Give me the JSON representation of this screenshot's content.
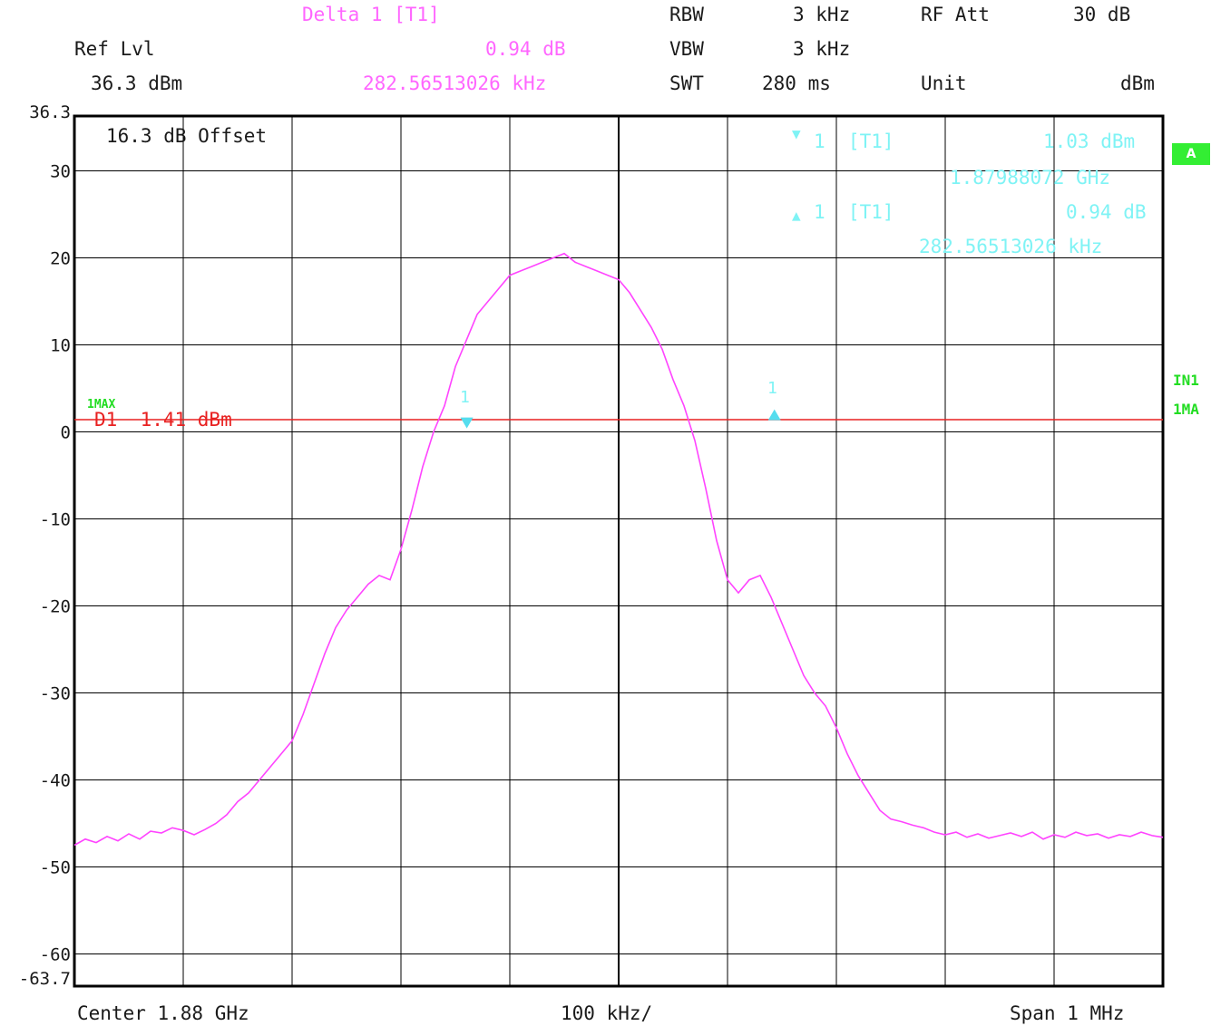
{
  "header": {
    "marker_title": "Delta 1 [T1]",
    "ref_lvl_label": "Ref Lvl",
    "ref_lvl_value": "36.3 dBm",
    "delta_value": "0.94 dB",
    "delta_freq": "282.56513026 kHz",
    "rbw_label": "RBW",
    "rbw_value": "3 kHz",
    "vbw_label": "VBW",
    "vbw_value": "3 kHz",
    "swt_label": "SWT",
    "swt_value": "280 ms",
    "rfatt_label": "RF Att",
    "rfatt_value": "30 dB",
    "unit_label": "Unit",
    "unit_value": "dBm"
  },
  "plot": {
    "offset_text": "16.3 dB Offset",
    "display_line": "D1  1.41 dBm",
    "line_badge": "1MAX",
    "marker1_block": {
      "symbol": "▼",
      "label": "1  [T1]",
      "level": "1.03 dBm",
      "freq": "1.87988072 GHz"
    },
    "delta1_block": {
      "symbol": "▲",
      "label": "1  [T1]",
      "level": "0.94 dB",
      "freq": "282.56513026 kHz"
    },
    "marker_num": "1"
  },
  "side": {
    "trace_badge": "A",
    "in1": "IN1",
    "ma": "1MA"
  },
  "footer": {
    "center": "Center 1.88 GHz",
    "div": "100 kHz/",
    "span": "Span 1 MHz"
  },
  "colors": {
    "trace": "#ff44ff",
    "display_line": "#e82020",
    "marker": "#55ddee",
    "grid": "#000000",
    "badge": "#33ee33"
  },
  "chart_data": {
    "type": "line",
    "xlabel": "",
    "ylabel": "",
    "x_unit": "kHz offset from center",
    "x_range": [
      -500,
      500
    ],
    "ylim": [
      -63.7,
      36.3
    ],
    "y_ticks": [
      30,
      20,
      10,
      0,
      -10,
      -20,
      -30,
      -40,
      -50,
      -60
    ],
    "y_tick_labels": [
      "36.3",
      "30",
      "20",
      "10",
      "0",
      "-10",
      "-20",
      "-30",
      "-40",
      "-50",
      "-60",
      "-63.7"
    ],
    "grid": true,
    "display_line": 1.41,
    "markers": [
      {
        "name": "1",
        "x": -139.5,
        "y": 1.03,
        "symbol": "down"
      },
      {
        "name": "delta 1",
        "x": 143.1,
        "y": 1.97,
        "symbol": "up"
      }
    ],
    "series": [
      {
        "x": [
          -500,
          -490,
          -480,
          -470,
          -460,
          -450,
          -440,
          -430,
          -420,
          -410,
          -400,
          -390,
          -380,
          -370,
          -360,
          -350,
          -340,
          -330,
          -320,
          -310,
          -300,
          -290,
          -280,
          -270,
          -260,
          -250,
          -240,
          -230,
          -220,
          -210,
          -200,
          -190,
          -180,
          -170,
          -160,
          -150,
          -140,
          -130,
          -120,
          -110,
          -100,
          -90,
          -80,
          -70,
          -60,
          -50,
          -40,
          -30,
          -20,
          -10,
          0,
          10,
          20,
          30,
          40,
          50,
          60,
          70,
          80,
          90,
          100,
          110,
          120,
          130,
          140,
          150,
          160,
          170,
          180,
          190,
          200,
          210,
          220,
          230,
          240,
          250,
          260,
          270,
          280,
          290,
          300,
          310,
          320,
          330,
          340,
          350,
          360,
          370,
          380,
          390,
          400,
          410,
          420,
          430,
          440,
          450,
          460,
          470,
          480,
          490,
          500
        ],
        "values": [
          -47.5,
          -46.8,
          -47.2,
          -46.5,
          -47.0,
          -46.2,
          -46.8,
          -45.9,
          -46.1,
          -45.5,
          -45.8,
          -46.3,
          -45.7,
          -45.0,
          -44.0,
          -42.5,
          -41.5,
          -40.0,
          -38.5,
          -37.0,
          -35.5,
          -32.5,
          -29.0,
          -25.5,
          -22.5,
          -20.5,
          -19.0,
          -17.5,
          -16.5,
          -17.0,
          -13.5,
          -9.0,
          -4.0,
          0.0,
          3.0,
          7.5,
          10.5,
          13.5,
          15.0,
          16.5,
          18.0,
          18.5,
          19.0,
          19.5,
          20.0,
          20.5,
          19.5,
          19.0,
          18.5,
          18.0,
          17.5,
          16.0,
          14.0,
          12.0,
          9.5,
          6.0,
          3.0,
          -1.0,
          -6.5,
          -12.5,
          -17.0,
          -18.5,
          -17.0,
          -16.5,
          -19.0,
          -22.0,
          -25.0,
          -28.0,
          -30.0,
          -31.5,
          -34.0,
          -37.0,
          -39.5,
          -41.5,
          -43.5,
          -44.5,
          -44.8,
          -45.2,
          -45.5,
          -46.0,
          -46.3,
          -46.0,
          -46.6,
          -46.2,
          -46.7,
          -46.4,
          -46.1,
          -46.5,
          -46.0,
          -46.8,
          -46.3,
          -46.6,
          -46.0,
          -46.4,
          -46.2,
          -46.7,
          -46.3,
          -46.5,
          -46.0,
          -46.4,
          -46.6
        ]
      }
    ]
  }
}
